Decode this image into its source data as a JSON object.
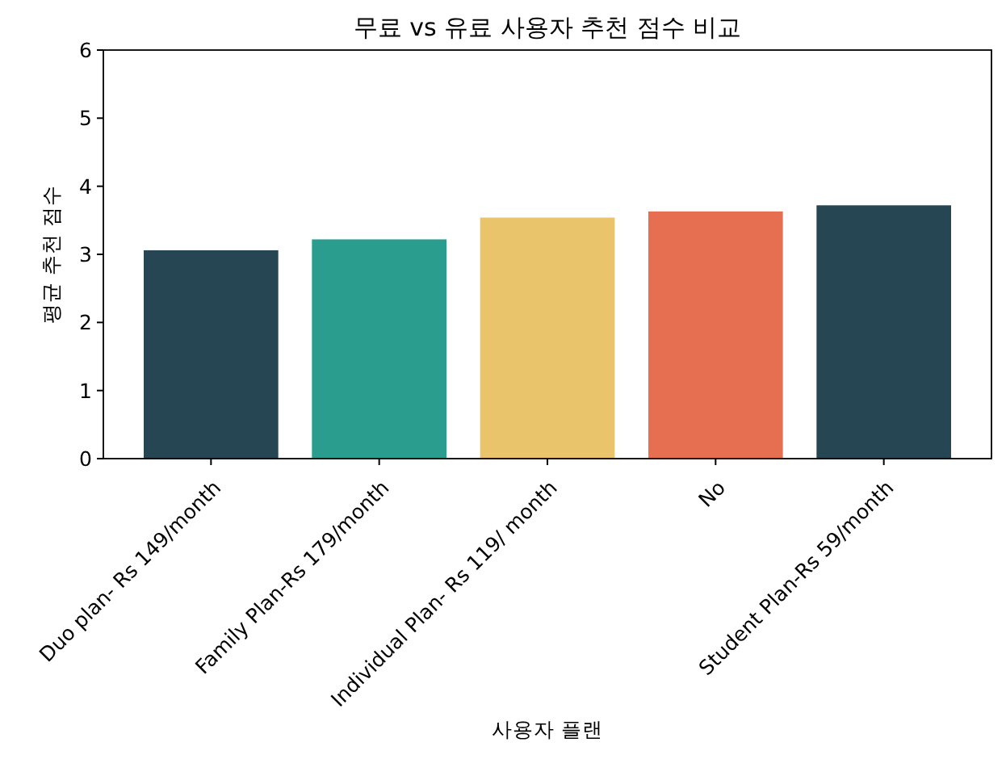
{
  "chart_data": {
    "type": "bar",
    "title": "무료 vs 유료 사용자 추천 점수 비교",
    "xlabel": "사용자 플랜",
    "ylabel": "평균 추천 점수",
    "categories": [
      "Duo plan- Rs 149/month",
      "Family Plan-Rs 179/month",
      "Individual Plan- Rs 119/ month",
      "No",
      "Student Plan-Rs 59/month"
    ],
    "values": [
      3.06,
      3.22,
      3.54,
      3.63,
      3.72
    ],
    "colors": [
      "#264653",
      "#2a9d8f",
      "#e9c46a",
      "#e76f51",
      "#264653"
    ],
    "ylim": [
      0,
      6
    ],
    "yticks": [
      0,
      1,
      2,
      3,
      4,
      5,
      6
    ]
  }
}
